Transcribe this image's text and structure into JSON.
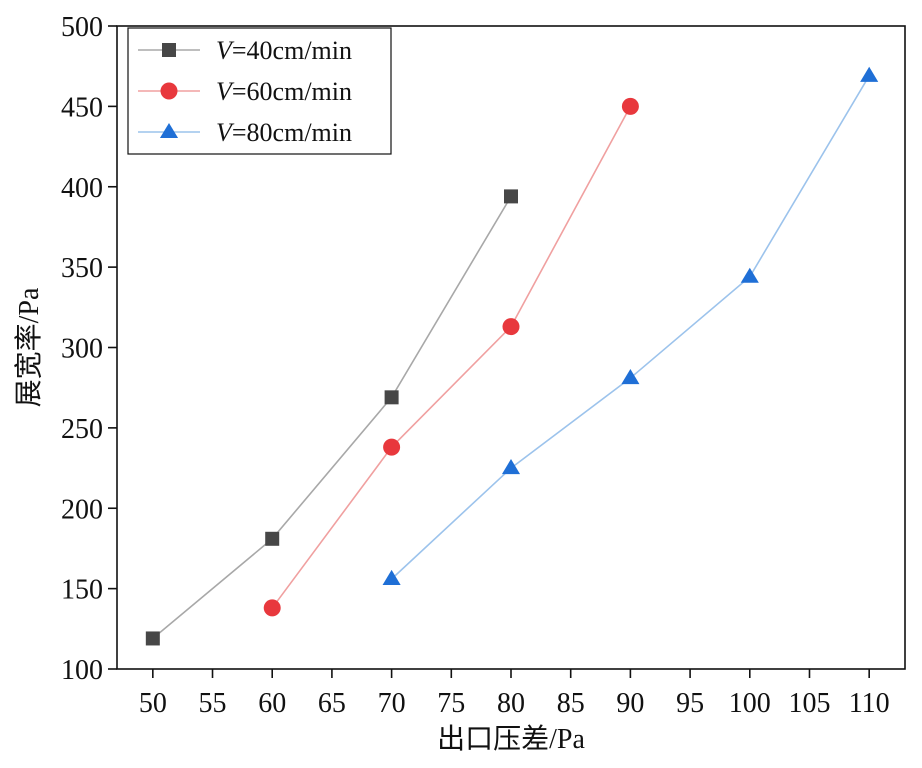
{
  "chart_data": {
    "type": "line",
    "title": "",
    "xlabel": "出口压差/Pa",
    "ylabel": "展宽率/Pa",
    "xlim": [
      47,
      113
    ],
    "ylim": [
      100,
      500
    ],
    "xticks": [
      50,
      55,
      60,
      65,
      70,
      75,
      80,
      85,
      90,
      95,
      100,
      105,
      110
    ],
    "yticks": [
      100,
      150,
      200,
      250,
      300,
      350,
      400,
      450,
      500
    ],
    "grid": false,
    "legend_position": "top-left",
    "series": [
      {
        "name": "V=40cm/min",
        "label_var": "V",
        "label_rest": "=40cm/min",
        "marker": "square",
        "color": "#474747",
        "line_color": "#a8a8a8",
        "x": [
          50,
          60,
          70,
          80
        ],
        "y": [
          119,
          181,
          269,
          394
        ]
      },
      {
        "name": "V=60cm/min",
        "label_var": "V",
        "label_rest": "=60cm/min",
        "marker": "circle",
        "color": "#e8383d",
        "line_color": "#f0a0a0",
        "x": [
          60,
          70,
          80,
          90
        ],
        "y": [
          138,
          238,
          313,
          450
        ]
      },
      {
        "name": "V=80cm/min",
        "label_var": "V",
        "label_rest": "=80cm/min",
        "marker": "triangle",
        "color": "#1f6fd6",
        "line_color": "#9cc3ec",
        "x": [
          70,
          80,
          90,
          100,
          110
        ],
        "y": [
          156,
          225,
          281,
          344,
          469
        ]
      }
    ]
  }
}
